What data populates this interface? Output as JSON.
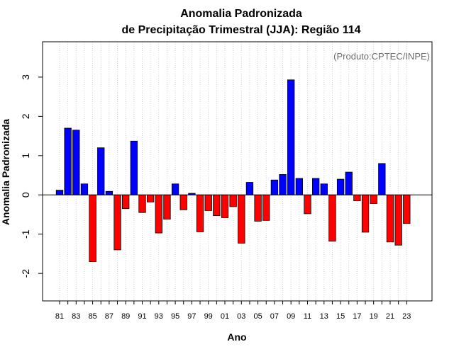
{
  "chart_data": {
    "type": "bar",
    "title": "Anomalia Padronizada",
    "subtitle": "de Precipitação Trimestral (JJA): Região 114",
    "xlabel": "Ano",
    "ylabel": "Anomalia Padronizada",
    "annotation": "(Produto:CPTEC/INPE)",
    "ylim": [
      -2.7,
      3.9
    ],
    "yticks": [
      -2,
      -1,
      0,
      1,
      2,
      3
    ],
    "xticks": [
      "81",
      "83",
      "85",
      "87",
      "89",
      "91",
      "93",
      "95",
      "97",
      "99",
      "01",
      "03",
      "05",
      "07",
      "09",
      "11",
      "13",
      "15",
      "17",
      "19",
      "21",
      "23"
    ],
    "grid": "vertical dotted",
    "colors": {
      "positive": "#0000ff",
      "negative": "#ff0000"
    },
    "categories": [
      1981,
      1982,
      1983,
      1984,
      1985,
      1986,
      1987,
      1988,
      1989,
      1990,
      1991,
      1992,
      1993,
      1994,
      1995,
      1996,
      1997,
      1998,
      1999,
      2000,
      2001,
      2002,
      2003,
      2004,
      2005,
      2006,
      2007,
      2008,
      2009,
      2010,
      2011,
      2012,
      2013,
      2014,
      2015,
      2016,
      2017,
      2018,
      2019,
      2020,
      2021,
      2022,
      2023
    ],
    "values": [
      0.12,
      1.7,
      1.65,
      0.28,
      -1.7,
      1.2,
      0.09,
      -1.4,
      -0.35,
      1.37,
      -0.45,
      -0.18,
      -0.97,
      -0.62,
      0.28,
      -0.38,
      0.04,
      -0.94,
      -0.4,
      -0.53,
      -0.58,
      -0.3,
      -1.23,
      0.32,
      -0.67,
      -0.65,
      0.38,
      0.52,
      2.93,
      0.42,
      -0.48,
      0.42,
      0.28,
      -1.18,
      0.4,
      0.58,
      -0.15,
      -0.95,
      -0.22,
      0.8,
      -1.2,
      -1.28,
      -0.73
    ]
  }
}
